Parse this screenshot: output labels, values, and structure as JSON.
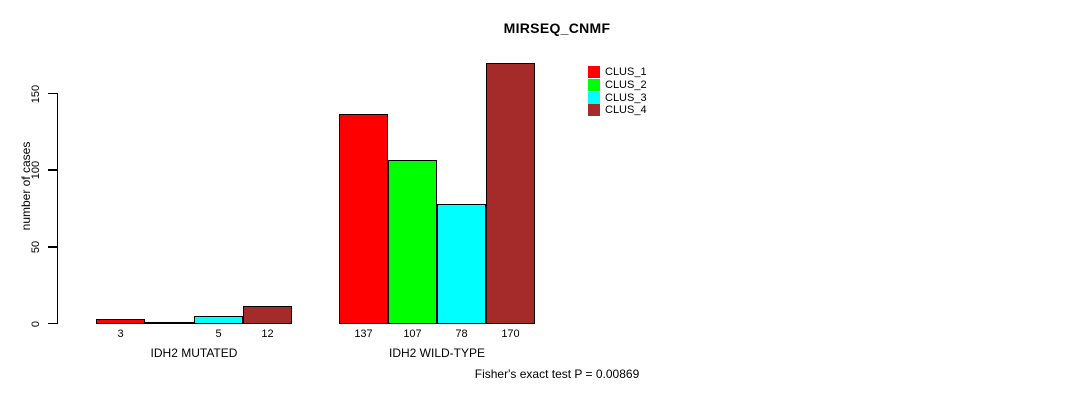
{
  "title": "MIRSEQ_CNMF",
  "chart_data": {
    "type": "bar",
    "title": "MIRSEQ_CNMF",
    "ylabel": "number of cases",
    "xlabel": "",
    "yticks": [
      0,
      50,
      100,
      150
    ],
    "ylim": [
      0,
      175
    ],
    "grid": false,
    "legend_position": "top-right",
    "categories": [
      "IDH2 MUTATED",
      "IDH2 WILD-TYPE"
    ],
    "series": [
      {
        "name": "CLUS_1",
        "color": "#FF0000",
        "values": [
          3,
          137
        ]
      },
      {
        "name": "CLUS_2",
        "color": "#00FF00",
        "values": [
          0,
          107
        ]
      },
      {
        "name": "CLUS_3",
        "color": "#00FFFF",
        "values": [
          5,
          78
        ]
      },
      {
        "name": "CLUS_4",
        "color": "#A52A2A",
        "values": [
          12,
          170
        ]
      }
    ],
    "bar_value_labels": [
      [
        "3",
        "",
        "5",
        "12"
      ],
      [
        "137",
        "107",
        "78",
        "170"
      ]
    ],
    "annotation": "Fisher's exact test P = 0.00869",
    "axis_color": "#000000",
    "background_color": "#FFFFFF"
  }
}
